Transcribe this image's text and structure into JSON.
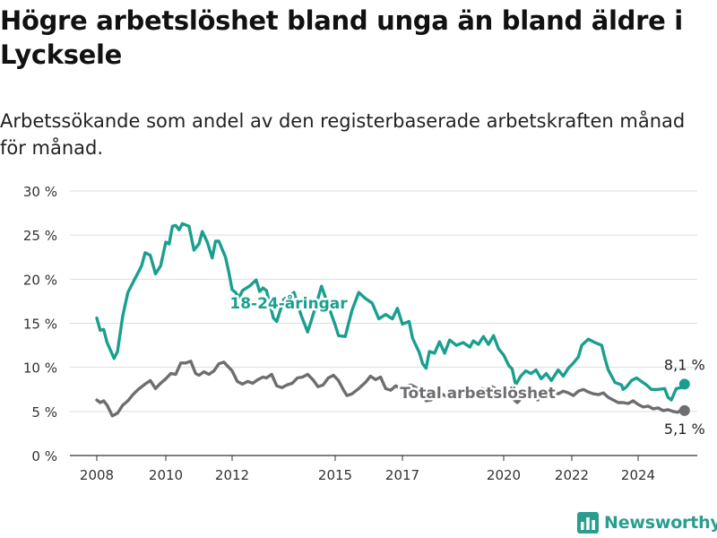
{
  "header": {
    "title": "Högre arbetslöshet bland unga än bland äldre i Lycksele",
    "subtitle": "Arbetssökande som andel av den registerbaserade arbetskraften månad för månad."
  },
  "brand": {
    "name": "Newsworthy",
    "logo_icon": "bar-chart-icon"
  },
  "colors": {
    "youth": "#1a9f8f",
    "total": "#6e6e72",
    "grid": "#dddddd",
    "axis": "#333333"
  },
  "chart_data": {
    "type": "line",
    "title": "Högre arbetslöshet bland unga än bland äldre i Lycksele",
    "subtitle": "Arbetssökande som andel av den registerbaserade arbetskraften månad för månad.",
    "xlabel": "",
    "ylabel": "",
    "ylim": [
      0,
      30
    ],
    "xlim": [
      2007.6,
      2025.8
    ],
    "grid": true,
    "y_ticks": [
      0,
      5,
      10,
      15,
      20,
      25,
      30
    ],
    "y_tick_labels": [
      "0 %",
      "5 %",
      "10 %",
      "15 %",
      "20 %",
      "25 %",
      "30 %"
    ],
    "x_ticks": [
      2008,
      2010,
      2012,
      2015,
      2017,
      2020,
      2022,
      2024
    ],
    "x_tick_labels": [
      "2008",
      "2010",
      "2012",
      "2015",
      "2017",
      "2020",
      "2022",
      "2024"
    ],
    "series": [
      {
        "name": "18-24-åringar",
        "color": "#1a9f8f",
        "end_label": "8,1 %",
        "points": [
          [
            2008.0,
            15.6
          ],
          [
            2008.1,
            14.2
          ],
          [
            2008.2,
            14.3
          ],
          [
            2008.3,
            12.8
          ],
          [
            2008.5,
            11.0
          ],
          [
            2008.6,
            11.8
          ],
          [
            2008.75,
            15.8
          ],
          [
            2008.9,
            18.5
          ],
          [
            2009.1,
            20.0
          ],
          [
            2009.3,
            21.5
          ],
          [
            2009.4,
            23.0
          ],
          [
            2009.55,
            22.7
          ],
          [
            2009.7,
            20.6
          ],
          [
            2009.85,
            21.5
          ],
          [
            2010.0,
            24.2
          ],
          [
            2010.1,
            24.0
          ],
          [
            2010.2,
            26.0
          ],
          [
            2010.3,
            26.1
          ],
          [
            2010.4,
            25.6
          ],
          [
            2010.5,
            26.3
          ],
          [
            2010.7,
            26.0
          ],
          [
            2010.85,
            23.3
          ],
          [
            2011.0,
            24.0
          ],
          [
            2011.1,
            25.4
          ],
          [
            2011.25,
            24.2
          ],
          [
            2011.4,
            22.4
          ],
          [
            2011.5,
            24.3
          ],
          [
            2011.6,
            24.3
          ],
          [
            2011.8,
            22.5
          ],
          [
            2011.9,
            20.8
          ],
          [
            2012.0,
            18.8
          ],
          [
            2012.1,
            18.5
          ],
          [
            2012.2,
            17.9
          ],
          [
            2012.3,
            18.7
          ],
          [
            2012.5,
            19.2
          ],
          [
            2012.7,
            19.9
          ],
          [
            2012.8,
            18.6
          ],
          [
            2012.9,
            19.0
          ],
          [
            2013.0,
            18.7
          ],
          [
            2013.2,
            15.6
          ],
          [
            2013.3,
            15.2
          ],
          [
            2013.5,
            17.7
          ],
          [
            2013.8,
            18.5
          ],
          [
            2014.0,
            16.0
          ],
          [
            2014.2,
            14.0
          ],
          [
            2014.4,
            16.5
          ],
          [
            2014.6,
            19.2
          ],
          [
            2014.8,
            17.0
          ],
          [
            2015.0,
            14.8
          ],
          [
            2015.1,
            13.6
          ],
          [
            2015.3,
            13.5
          ],
          [
            2015.5,
            16.5
          ],
          [
            2015.7,
            18.5
          ],
          [
            2015.9,
            17.8
          ],
          [
            2016.1,
            17.3
          ],
          [
            2016.3,
            15.5
          ],
          [
            2016.5,
            16.0
          ],
          [
            2016.7,
            15.5
          ],
          [
            2016.85,
            16.7
          ],
          [
            2017.0,
            14.9
          ],
          [
            2017.2,
            15.2
          ],
          [
            2017.3,
            13.3
          ],
          [
            2017.5,
            11.7
          ],
          [
            2017.6,
            10.4
          ],
          [
            2017.7,
            9.9
          ],
          [
            2017.8,
            11.8
          ],
          [
            2017.95,
            11.6
          ],
          [
            2018.1,
            12.9
          ],
          [
            2018.25,
            11.6
          ],
          [
            2018.4,
            13.1
          ],
          [
            2018.6,
            12.5
          ],
          [
            2018.8,
            12.8
          ],
          [
            2019.0,
            12.3
          ],
          [
            2019.1,
            13.0
          ],
          [
            2019.25,
            12.6
          ],
          [
            2019.4,
            13.5
          ],
          [
            2019.55,
            12.6
          ],
          [
            2019.7,
            13.6
          ],
          [
            2019.85,
            12.1
          ],
          [
            2020.0,
            11.4
          ],
          [
            2020.15,
            10.2
          ],
          [
            2020.25,
            9.8
          ],
          [
            2020.35,
            8.0
          ],
          [
            2020.5,
            9.0
          ],
          [
            2020.65,
            9.6
          ],
          [
            2020.8,
            9.3
          ],
          [
            2020.95,
            9.7
          ],
          [
            2021.1,
            8.7
          ],
          [
            2021.25,
            9.3
          ],
          [
            2021.4,
            8.5
          ],
          [
            2021.6,
            9.7
          ],
          [
            2021.75,
            9.0
          ],
          [
            2021.9,
            9.9
          ],
          [
            2022.05,
            10.5
          ],
          [
            2022.2,
            11.2
          ],
          [
            2022.3,
            12.5
          ],
          [
            2022.5,
            13.2
          ],
          [
            2022.7,
            12.8
          ],
          [
            2022.9,
            12.5
          ],
          [
            2023.0,
            11.0
          ],
          [
            2023.1,
            9.7
          ],
          [
            2023.3,
            8.3
          ],
          [
            2023.5,
            8.0
          ],
          [
            2023.55,
            7.5
          ],
          [
            2023.65,
            7.8
          ],
          [
            2023.8,
            8.5
          ],
          [
            2023.95,
            8.8
          ],
          [
            2024.1,
            8.4
          ],
          [
            2024.25,
            8.0
          ],
          [
            2024.4,
            7.5
          ],
          [
            2024.6,
            7.5
          ],
          [
            2024.8,
            7.6
          ],
          [
            2024.9,
            6.6
          ],
          [
            2025.0,
            6.3
          ],
          [
            2025.15,
            7.6
          ],
          [
            2025.3,
            7.7
          ],
          [
            2025.4,
            8.1
          ]
        ]
      },
      {
        "name": "Total arbetslöshet",
        "color": "#6e6e72",
        "end_label": "5,1 %",
        "points": [
          [
            2008.0,
            6.3
          ],
          [
            2008.1,
            6.0
          ],
          [
            2008.2,
            6.2
          ],
          [
            2008.3,
            5.7
          ],
          [
            2008.45,
            4.5
          ],
          [
            2008.6,
            4.8
          ],
          [
            2008.75,
            5.7
          ],
          [
            2008.9,
            6.2
          ],
          [
            2009.05,
            6.9
          ],
          [
            2009.2,
            7.5
          ],
          [
            2009.4,
            8.1
          ],
          [
            2009.55,
            8.5
          ],
          [
            2009.7,
            7.6
          ],
          [
            2009.85,
            8.2
          ],
          [
            2010.0,
            8.7
          ],
          [
            2010.15,
            9.3
          ],
          [
            2010.3,
            9.2
          ],
          [
            2010.45,
            10.5
          ],
          [
            2010.6,
            10.5
          ],
          [
            2010.75,
            10.7
          ],
          [
            2010.9,
            9.3
          ],
          [
            2011.0,
            9.1
          ],
          [
            2011.15,
            9.5
          ],
          [
            2011.3,
            9.2
          ],
          [
            2011.45,
            9.6
          ],
          [
            2011.6,
            10.4
          ],
          [
            2011.75,
            10.6
          ],
          [
            2011.9,
            10.0
          ],
          [
            2012.0,
            9.6
          ],
          [
            2012.15,
            8.4
          ],
          [
            2012.3,
            8.1
          ],
          [
            2012.45,
            8.4
          ],
          [
            2012.6,
            8.2
          ],
          [
            2012.75,
            8.6
          ],
          [
            2012.9,
            8.9
          ],
          [
            2013.0,
            8.8
          ],
          [
            2013.15,
            9.2
          ],
          [
            2013.3,
            7.9
          ],
          [
            2013.45,
            7.7
          ],
          [
            2013.6,
            8.0
          ],
          [
            2013.75,
            8.2
          ],
          [
            2013.9,
            8.8
          ],
          [
            2014.05,
            8.9
          ],
          [
            2014.2,
            9.2
          ],
          [
            2014.35,
            8.6
          ],
          [
            2014.5,
            7.8
          ],
          [
            2014.65,
            8.0
          ],
          [
            2014.8,
            8.8
          ],
          [
            2014.95,
            9.1
          ],
          [
            2015.1,
            8.5
          ],
          [
            2015.25,
            7.4
          ],
          [
            2015.35,
            6.8
          ],
          [
            2015.5,
            7.0
          ],
          [
            2015.7,
            7.6
          ],
          [
            2015.9,
            8.3
          ],
          [
            2016.05,
            9.0
          ],
          [
            2016.2,
            8.6
          ],
          [
            2016.35,
            8.9
          ],
          [
            2016.5,
            7.6
          ],
          [
            2016.65,
            7.4
          ],
          [
            2016.8,
            7.9
          ],
          [
            2016.95,
            7.6
          ],
          [
            2017.1,
            7.8
          ],
          [
            2017.25,
            8.0
          ],
          [
            2017.4,
            7.7
          ],
          [
            2017.55,
            7.1
          ],
          [
            2017.7,
            6.2
          ],
          [
            2017.85,
            6.3
          ],
          [
            2018.0,
            6.8
          ],
          [
            2018.15,
            7.0
          ],
          [
            2018.3,
            6.7
          ],
          [
            2018.45,
            7.5
          ],
          [
            2018.6,
            7.2
          ],
          [
            2018.75,
            7.0
          ],
          [
            2018.9,
            7.2
          ],
          [
            2019.05,
            7.3
          ],
          [
            2019.2,
            7.1
          ],
          [
            2019.35,
            7.6
          ],
          [
            2019.5,
            7.4
          ],
          [
            2019.65,
            7.8
          ],
          [
            2019.8,
            7.5
          ],
          [
            2019.95,
            7.3
          ],
          [
            2020.1,
            6.9
          ],
          [
            2020.25,
            6.5
          ],
          [
            2020.4,
            6.0
          ],
          [
            2020.55,
            6.6
          ],
          [
            2020.7,
            6.9
          ],
          [
            2020.85,
            6.7
          ],
          [
            2021.0,
            6.3
          ],
          [
            2021.15,
            7.0
          ],
          [
            2021.3,
            7.2
          ],
          [
            2021.45,
            7.4
          ],
          [
            2021.6,
            7.0
          ],
          [
            2021.75,
            7.3
          ],
          [
            2021.9,
            7.1
          ],
          [
            2022.05,
            6.8
          ],
          [
            2022.2,
            7.3
          ],
          [
            2022.35,
            7.5
          ],
          [
            2022.5,
            7.2
          ],
          [
            2022.65,
            7.0
          ],
          [
            2022.8,
            6.9
          ],
          [
            2022.95,
            7.1
          ],
          [
            2023.1,
            6.6
          ],
          [
            2023.25,
            6.3
          ],
          [
            2023.4,
            6.0
          ],
          [
            2023.55,
            6.0
          ],
          [
            2023.7,
            5.9
          ],
          [
            2023.85,
            6.2
          ],
          [
            2024.0,
            5.8
          ],
          [
            2024.15,
            5.5
          ],
          [
            2024.3,
            5.6
          ],
          [
            2024.45,
            5.3
          ],
          [
            2024.6,
            5.4
          ],
          [
            2024.75,
            5.1
          ],
          [
            2024.9,
            5.2
          ],
          [
            2025.05,
            5.0
          ],
          [
            2025.2,
            4.9
          ],
          [
            2025.3,
            5.2
          ],
          [
            2025.4,
            5.1
          ]
        ]
      }
    ]
  }
}
